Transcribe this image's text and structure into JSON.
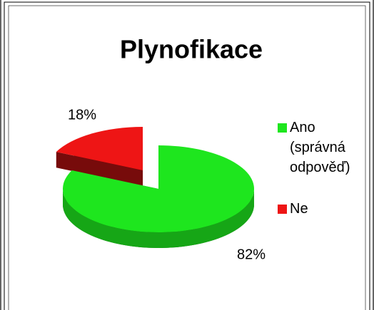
{
  "chart_data": {
    "type": "pie",
    "title": "Plynofikace",
    "categories": [
      "Ano (správná odpověď)",
      "Ne"
    ],
    "values": [
      82,
      18
    ],
    "value_labels": [
      "82%",
      "18%"
    ],
    "colors": [
      "#1ee61e",
      "#ee1515"
    ],
    "legend": "right"
  }
}
